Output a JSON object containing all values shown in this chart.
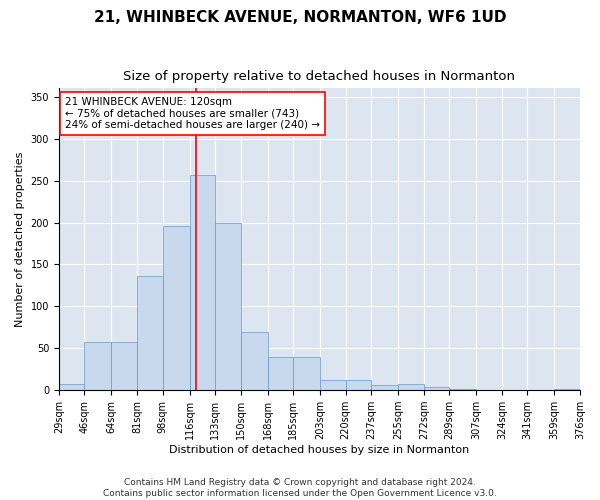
{
  "title": "21, WHINBECK AVENUE, NORMANTON, WF6 1UD",
  "subtitle": "Size of property relative to detached houses in Normanton",
  "xlabel": "Distribution of detached houses by size in Normanton",
  "ylabel": "Number of detached properties",
  "bar_color": "#c8d9ee",
  "bar_edge_color": "#6699cc",
  "background_color": "#dde6f0",
  "grid_color": "#ffffff",
  "vline_x": 120,
  "vline_color": "red",
  "annotation_text": "21 WHINBECK AVENUE: 120sqm\n← 75% of detached houses are smaller (743)\n24% of semi-detached houses are larger (240) →",
  "annotation_box_color": "white",
  "annotation_box_edge_color": "red",
  "bins": [
    29,
    46,
    64,
    81,
    98,
    116,
    133,
    150,
    168,
    185,
    203,
    220,
    237,
    255,
    272,
    289,
    307,
    324,
    341,
    359,
    376
  ],
  "counts": [
    8,
    57,
    57,
    136,
    196,
    257,
    200,
    70,
    40,
    40,
    12,
    12,
    6,
    7,
    4,
    2,
    0,
    0,
    0,
    2
  ],
  "ylim": [
    0,
    360
  ],
  "yticks": [
    0,
    50,
    100,
    150,
    200,
    250,
    300,
    350
  ],
  "footer_text": "Contains HM Land Registry data © Crown copyright and database right 2024.\nContains public sector information licensed under the Open Government Licence v3.0.",
  "title_fontsize": 11,
  "subtitle_fontsize": 9.5,
  "axis_label_fontsize": 8,
  "tick_fontsize": 7,
  "footer_fontsize": 6.5,
  "annotation_fontsize": 7.5
}
